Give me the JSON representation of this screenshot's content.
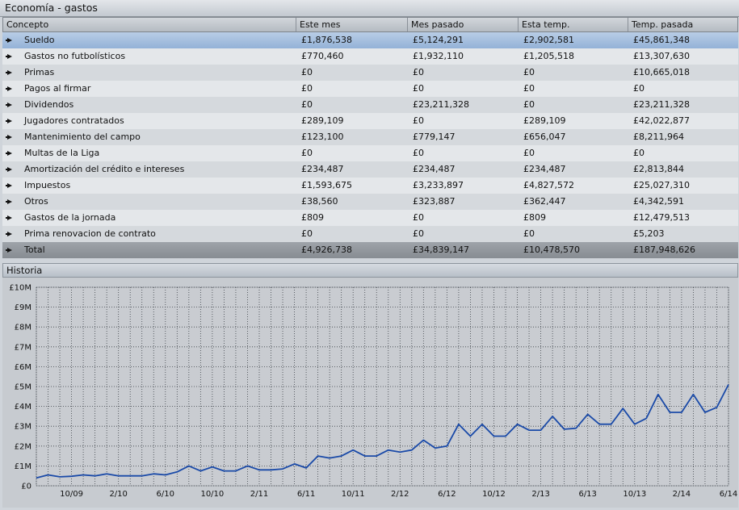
{
  "window": {
    "title": "Economía - gastos"
  },
  "table": {
    "headers": [
      "Concepto",
      "Este mes",
      "Mes pasado",
      "Esta temp.",
      "Temp. pasada"
    ],
    "rows": [
      [
        "Sueldo",
        "£1,876,538",
        "£5,124,291",
        "£2,902,581",
        "£45,861,348"
      ],
      [
        "Gastos no futbolísticos",
        "£770,460",
        "£1,932,110",
        "£1,205,518",
        "£13,307,630"
      ],
      [
        "Primas",
        "£0",
        "£0",
        "£0",
        "£10,665,018"
      ],
      [
        "Pagos al firmar",
        "£0",
        "£0",
        "£0",
        "£0"
      ],
      [
        "Dividendos",
        "£0",
        "£23,211,328",
        "£0",
        "£23,211,328"
      ],
      [
        "Jugadores contratados",
        "£289,109",
        "£0",
        "£289,109",
        "£42,022,877"
      ],
      [
        "Mantenimiento del campo",
        "£123,100",
        "£779,147",
        "£656,047",
        "£8,211,964"
      ],
      [
        "Multas de la Liga",
        "£0",
        "£0",
        "£0",
        "£0"
      ],
      [
        "Amortización del crédito e intereses",
        "£234,487",
        "£234,487",
        "£234,487",
        "£2,813,844"
      ],
      [
        "Impuestos",
        "£1,593,675",
        "£3,233,897",
        "£4,827,572",
        "£25,027,310"
      ],
      [
        "Otros",
        "£38,560",
        "£323,887",
        "£362,447",
        "£4,342,591"
      ],
      [
        "Gastos de la jornada",
        "£809",
        "£0",
        "£809",
        "£12,479,513"
      ],
      [
        "Prima renovacion de contrato",
        "£0",
        "£0",
        "£0",
        "£5,203"
      ]
    ],
    "total": [
      "Total",
      "£4,926,738",
      "£34,839,147",
      "£10,478,570",
      "£187,948,626"
    ],
    "selected_row": 0
  },
  "history": {
    "title": "Historia"
  },
  "chart_data": {
    "type": "line",
    "title": "",
    "xlabel": "",
    "ylabel": "",
    "ylim": [
      0,
      10
    ],
    "y_unit": "£M",
    "y_tick_labels": [
      "£0",
      "£1M",
      "£2M",
      "£3M",
      "£4M",
      "£5M",
      "£6M",
      "£7M",
      "£8M",
      "£9M",
      "£10M"
    ],
    "x_tick_labels": [
      "10/09",
      "2/10",
      "6/10",
      "10/10",
      "2/11",
      "6/11",
      "10/11",
      "2/12",
      "6/12",
      "10/12",
      "2/13",
      "6/13",
      "10/13",
      "2/14",
      "6/14"
    ],
    "x_tick_index": [
      4,
      8,
      12,
      16,
      20,
      24,
      28,
      32,
      36,
      40,
      44,
      48,
      52,
      56,
      60
    ],
    "series": [
      {
        "color": "#1a4aa8",
        "values": [
          0.4,
          0.55,
          0.45,
          0.48,
          0.55,
          0.5,
          0.6,
          0.5,
          0.5,
          0.5,
          0.6,
          0.55,
          0.7,
          1.0,
          0.75,
          0.95,
          0.75,
          0.75,
          1.0,
          0.8,
          0.8,
          0.85,
          1.1,
          0.9,
          1.5,
          1.4,
          1.5,
          1.8,
          1.5,
          1.5,
          1.8,
          1.7,
          1.8,
          2.3,
          1.9,
          2.0,
          3.1,
          2.5,
          3.1,
          2.5,
          2.5,
          3.1,
          2.8,
          2.8,
          3.5,
          2.85,
          2.9,
          3.6,
          3.1,
          3.1,
          3.9,
          3.1,
          3.4,
          4.6,
          3.7,
          3.7,
          4.6,
          3.7,
          3.95,
          5.1
        ]
      }
    ],
    "grid": true
  }
}
